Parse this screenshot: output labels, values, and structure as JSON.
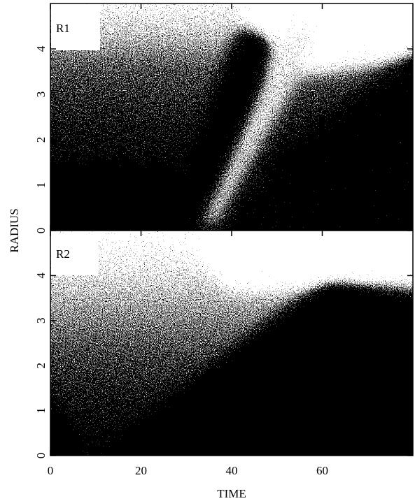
{
  "chart_data": [
    {
      "type": "density",
      "panel_label": "R1",
      "y_label": "RADIUS",
      "xlim": [
        0,
        80
      ],
      "ylim": [
        0,
        5
      ],
      "yticks": [
        0,
        1,
        2,
        3,
        4
      ]
    },
    {
      "type": "density",
      "panel_label": "R2",
      "x_label": "TIME",
      "xlim": [
        0,
        80
      ],
      "xticks": [
        0,
        20,
        40,
        60
      ],
      "ylim": [
        0,
        5
      ],
      "yticks": [
        0,
        1,
        2,
        3,
        4
      ]
    }
  ]
}
